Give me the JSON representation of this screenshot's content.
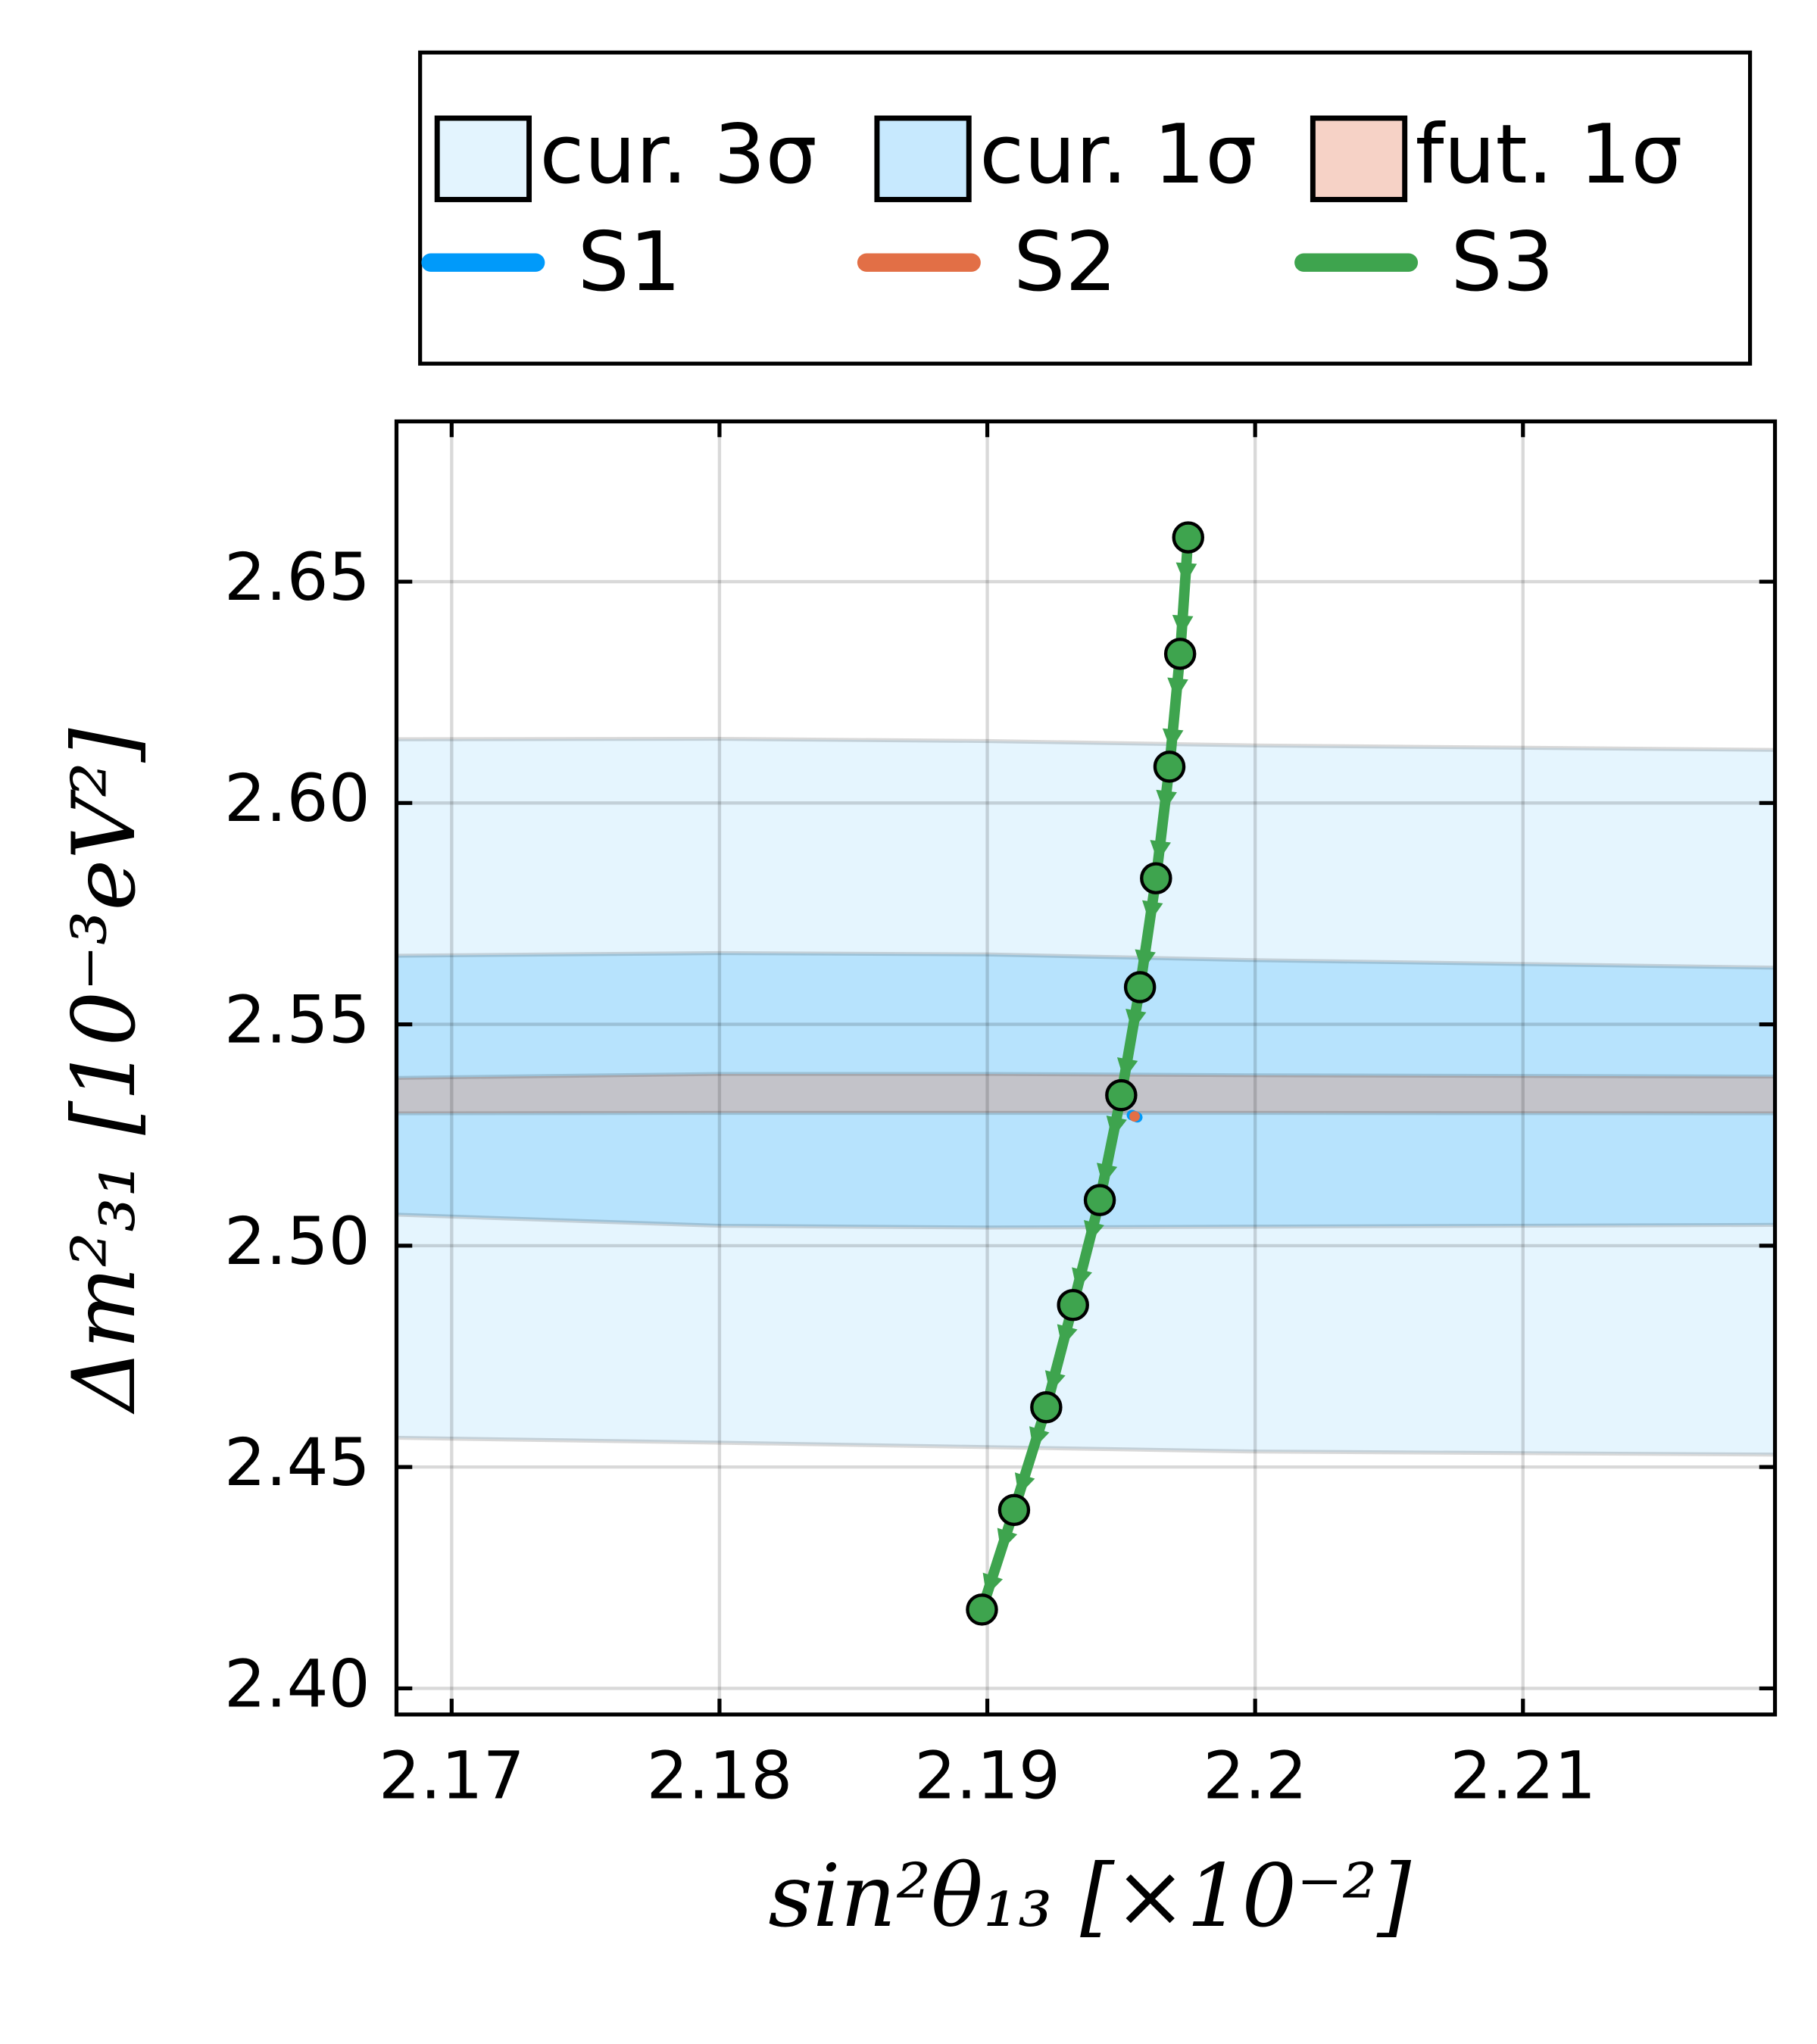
{
  "chart_data": {
    "type": "line",
    "xlabel": "sin²θ₁₃ [×10⁻²]",
    "ylabel": "Δm²₃₁ [10⁻³eV²]",
    "xlim": [
      2.16794,
      2.21941
    ],
    "ylim": [
      2.3941,
      2.6862
    ],
    "xticks": [
      2.17,
      2.18,
      2.19,
      2.2,
      2.21
    ],
    "yticks": [
      {
        "value": 2.4,
        "label": "2.40"
      },
      2.45,
      {
        "value": 2.5,
        "label": "2.50"
      },
      2.55,
      {
        "value": 2.6,
        "label": "2.60"
      },
      2.65
    ],
    "grid": true,
    "bands": [
      {
        "name": "cur. 3σ",
        "color": "#009afa",
        "opacity": 0.1,
        "x": [
          2.168,
          2.18,
          2.19,
          2.2,
          2.2194
        ],
        "upper": [
          2.6144,
          2.6145,
          2.614,
          2.613,
          2.612
        ],
        "lower": [
          2.4566,
          2.4555,
          2.4545,
          2.4535,
          2.4528
        ]
      },
      {
        "name": "cur. 1σ",
        "color": "#009afa",
        "opacity": 0.2,
        "x": [
          2.168,
          2.18,
          2.19,
          2.2,
          2.2194
        ],
        "upper": [
          2.5655,
          2.5661,
          2.5658,
          2.5645,
          2.5628
        ],
        "lower": [
          2.507,
          2.5045,
          2.5041,
          2.5043,
          2.5047
        ]
      },
      {
        "name": "fut. 1σ",
        "color": "#e26f46",
        "opacity": 0.28,
        "x": [
          2.168,
          2.18,
          2.19,
          2.2,
          2.2194
        ],
        "upper": [
          2.5379,
          2.5388,
          2.5388,
          2.5385,
          2.5382
        ],
        "lower": [
          2.5299,
          2.53,
          2.53,
          2.53,
          2.5299
        ]
      }
    ],
    "series": [
      {
        "name": "S1",
        "color": "#009afa",
        "x": [
          2.1954,
          2.1956
        ],
        "values": [
          2.5295,
          2.529
        ]
      },
      {
        "name": "S2",
        "color": "#e26f46",
        "x": [
          2.1955
        ],
        "values": [
          2.5292
        ]
      },
      {
        "name": "S3",
        "color": "#3ea44e",
        "markers": true,
        "x": [
          2.1975,
          2.1972,
          2.1968,
          2.1963,
          2.1957,
          2.195,
          2.1942,
          2.1932,
          2.1922,
          2.191,
          2.1898
        ],
        "values": [
          2.66,
          2.6337,
          2.6082,
          2.583,
          2.5584,
          2.534,
          2.5103,
          2.4866,
          2.4635,
          2.4403,
          2.4178
        ]
      }
    ]
  }
}
